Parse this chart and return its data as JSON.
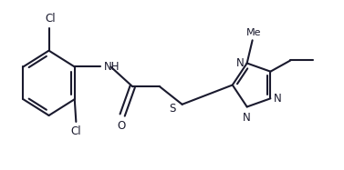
{
  "bg_color": "#ffffff",
  "line_color": "#1a1a2e",
  "bond_lw": 1.5,
  "font_size": 8.5,
  "figsize": [
    3.77,
    1.87
  ],
  "dpi": 100,
  "xlim": [
    0.0,
    9.5
  ],
  "ylim": [
    0.2,
    4.5
  ]
}
